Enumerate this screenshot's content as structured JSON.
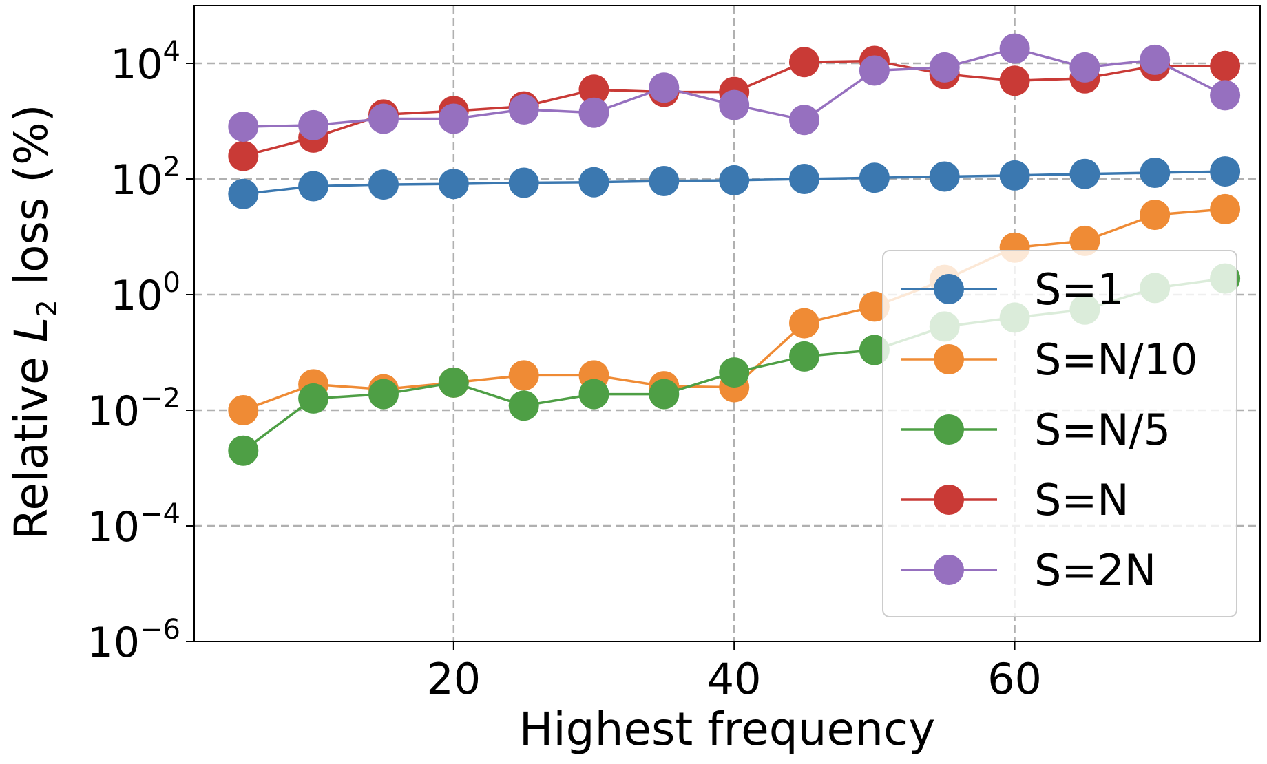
{
  "chart_data": {
    "type": "line",
    "scale_y": "log",
    "xlabel": "Highest frequency",
    "ylabel_prefix": "Relative ",
    "ylabel_var": "L",
    "ylabel_sub": "2",
    "ylabel_suffix": " loss (%)",
    "xlim": [
      1.5,
      77.5
    ],
    "ylim_exp": [
      -6,
      5
    ],
    "x_ticks": [
      {
        "value": 20,
        "label": "20"
      },
      {
        "value": 40,
        "label": "40"
      },
      {
        "value": 60,
        "label": "60"
      }
    ],
    "y_ticks": [
      {
        "exp": 4,
        "base": "10",
        "sup": "4"
      },
      {
        "exp": 2,
        "base": "10",
        "sup": "2"
      },
      {
        "exp": 0,
        "base": "10",
        "sup": "0"
      },
      {
        "exp": -2,
        "base": "10",
        "sup": "−2"
      },
      {
        "exp": -4,
        "base": "10",
        "sup": "−4"
      },
      {
        "exp": -6,
        "base": "10",
        "sup": "−6"
      }
    ],
    "grid": true,
    "legend_position": "lower-right",
    "x": [
      5,
      10,
      15,
      20,
      25,
      30,
      35,
      40,
      45,
      50,
      55,
      60,
      65,
      70,
      75
    ],
    "series": [
      {
        "name": "S=1",
        "color": "#3b78b0",
        "values": [
          55,
          75,
          80,
          82,
          86,
          88,
          92,
          95,
          100,
          105,
          110,
          115,
          122,
          128,
          135
        ]
      },
      {
        "name": "S=N/10",
        "color": "#ef8b35",
        "values": [
          0.01,
          0.028,
          0.023,
          0.03,
          0.04,
          0.04,
          0.026,
          0.025,
          0.32,
          0.62,
          1.8,
          6.5,
          8.5,
          24,
          30
        ]
      },
      {
        "name": "S=N/5",
        "color": "#4e9f45",
        "values": [
          0.002,
          0.016,
          0.019,
          0.03,
          0.012,
          0.019,
          0.019,
          0.045,
          0.085,
          0.11,
          0.28,
          0.4,
          0.55,
          1.3,
          1.9
        ]
      },
      {
        "name": "S=N",
        "color": "#c93a36",
        "values": [
          250,
          520,
          1300,
          1500,
          1800,
          3500,
          3200,
          3200,
          10500,
          11000,
          6500,
          5000,
          5500,
          9000,
          9000
        ]
      },
      {
        "name": "S=2N",
        "color": "#9670bf",
        "values": [
          800,
          850,
          1100,
          1100,
          1600,
          1400,
          3800,
          1900,
          1050,
          7500,
          8500,
          18000,
          8500,
          11500,
          2800
        ]
      }
    ]
  }
}
